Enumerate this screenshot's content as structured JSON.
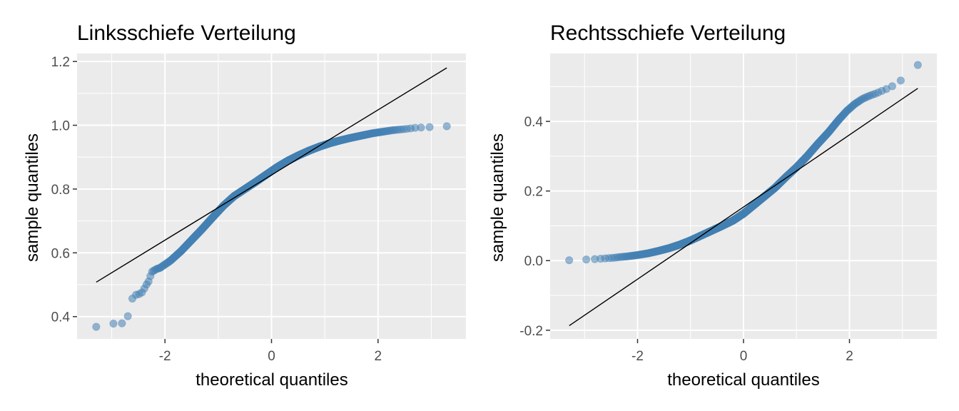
{
  "colors": {
    "panel_bg": "#ebebeb",
    "grid_major": "#ffffff",
    "point_fill": "#4682b4",
    "point_stroke": "#4682b4",
    "line": "#000000",
    "tick": "#333333"
  },
  "chart_data": [
    {
      "type": "scatter",
      "title": "Linksschiefe Verteilung",
      "xlabel": "theoretical quantiles",
      "ylabel": "sample quantiles",
      "xlim": [
        -3.65,
        3.65
      ],
      "ylim": [
        0.33,
        1.225
      ],
      "x_ticks": [
        -2,
        0,
        2
      ],
      "x_tick_labels": [
        "-2",
        "0",
        "2"
      ],
      "y_ticks": [
        0.4,
        0.6,
        0.8,
        1.0,
        1.2
      ],
      "y_tick_labels": [
        "0.4",
        "0.6",
        "0.8",
        "1.0",
        "1.2"
      ],
      "grid": true,
      "n_points": 1000,
      "reference_line": {
        "x": [
          -3.29,
          3.29
        ],
        "y": [
          0.508,
          1.18
        ]
      },
      "points": [
        [
          -3.29,
          0.368
        ],
        [
          -2.98,
          0.378
        ],
        [
          -2.8,
          0.379
        ],
        [
          -2.7,
          0.399
        ],
        [
          -2.62,
          0.455
        ],
        [
          -2.55,
          0.468
        ],
        [
          -2.48,
          0.471
        ],
        [
          -2.42,
          0.477
        ],
        [
          -2.36,
          0.497
        ],
        [
          -2.3,
          0.512
        ],
        [
          -2.25,
          0.54
        ],
        [
          -2.2,
          0.545
        ],
        [
          -2.15,
          0.55
        ],
        [
          -2.1,
          0.552
        ],
        [
          -1.9,
          0.575
        ],
        [
          -1.7,
          0.605
        ],
        [
          -1.5,
          0.64
        ],
        [
          -1.3,
          0.675
        ],
        [
          -1.1,
          0.712
        ],
        [
          -0.9,
          0.748
        ],
        [
          -0.7,
          0.778
        ],
        [
          -0.5,
          0.8
        ],
        [
          -0.3,
          0.822
        ],
        [
          -0.1,
          0.845
        ],
        [
          0.1,
          0.868
        ],
        [
          0.3,
          0.888
        ],
        [
          0.5,
          0.905
        ],
        [
          0.7,
          0.92
        ],
        [
          0.9,
          0.933
        ],
        [
          1.1,
          0.944
        ],
        [
          1.3,
          0.953
        ],
        [
          1.5,
          0.961
        ],
        [
          1.7,
          0.968
        ],
        [
          1.9,
          0.975
        ],
        [
          2.1,
          0.98
        ],
        [
          2.3,
          0.985
        ],
        [
          2.5,
          0.988
        ],
        [
          2.6,
          0.99
        ],
        [
          2.7,
          0.992
        ],
        [
          2.82,
          0.993
        ],
        [
          2.95,
          0.994
        ],
        [
          3.29,
          0.997
        ]
      ]
    },
    {
      "type": "scatter",
      "title": "Rechtsschiefe Verteilung",
      "xlabel": "theoretical quantiles",
      "ylabel": "sample quantiles",
      "xlim": [
        -3.65,
        3.65
      ],
      "ylim": [
        -0.225,
        0.595
      ],
      "x_ticks": [
        -2,
        0,
        2
      ],
      "x_tick_labels": [
        "-2",
        "0",
        "2"
      ],
      "y_ticks": [
        -0.2,
        0.0,
        0.2,
        0.4
      ],
      "y_tick_labels": [
        "-0.2",
        "0.0",
        "0.2",
        "0.4"
      ],
      "grid": true,
      "n_points": 1000,
      "reference_line": {
        "x": [
          -3.29,
          3.29
        ],
        "y": [
          -0.187,
          0.495
        ]
      },
      "points": [
        [
          -3.29,
          0.001
        ],
        [
          -2.98,
          0.003
        ],
        [
          -2.85,
          0.004
        ],
        [
          -2.75,
          0.005
        ],
        [
          -2.65,
          0.006
        ],
        [
          -2.55,
          0.007
        ],
        [
          -2.45,
          0.008
        ],
        [
          -2.35,
          0.01
        ],
        [
          -2.2,
          0.012
        ],
        [
          -2.0,
          0.016
        ],
        [
          -1.8,
          0.021
        ],
        [
          -1.6,
          0.028
        ],
        [
          -1.4,
          0.036
        ],
        [
          -1.2,
          0.046
        ],
        [
          -1.0,
          0.058
        ],
        [
          -0.8,
          0.072
        ],
        [
          -0.6,
          0.086
        ],
        [
          -0.4,
          0.1
        ],
        [
          -0.2,
          0.115
        ],
        [
          0.0,
          0.135
        ],
        [
          0.2,
          0.16
        ],
        [
          0.4,
          0.185
        ],
        [
          0.6,
          0.21
        ],
        [
          0.8,
          0.24
        ],
        [
          1.0,
          0.268
        ],
        [
          1.2,
          0.3
        ],
        [
          1.4,
          0.335
        ],
        [
          1.6,
          0.368
        ],
        [
          1.8,
          0.405
        ],
        [
          1.95,
          0.43
        ],
        [
          2.1,
          0.45
        ],
        [
          2.25,
          0.465
        ],
        [
          2.4,
          0.475
        ],
        [
          2.5,
          0.48
        ],
        [
          2.6,
          0.487
        ],
        [
          2.7,
          0.493
        ],
        [
          2.82,
          0.502
        ],
        [
          2.95,
          0.515
        ],
        [
          3.29,
          0.562
        ]
      ]
    }
  ]
}
